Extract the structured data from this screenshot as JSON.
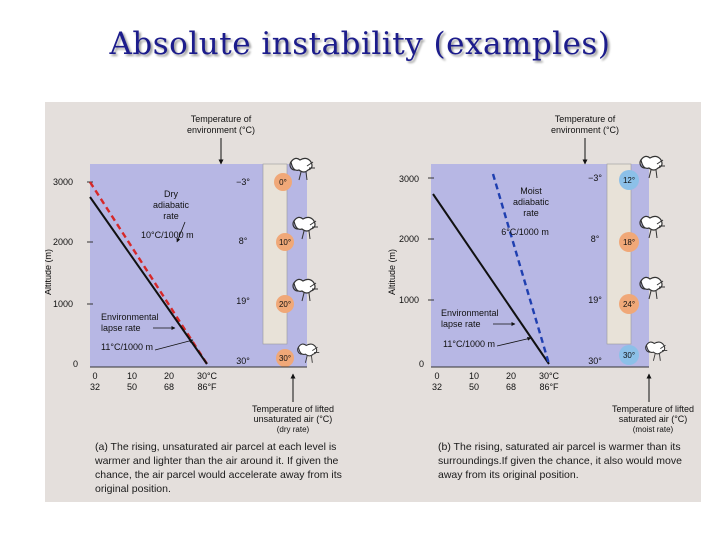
{
  "slide": {
    "title": "Absolute instability (examples)"
  },
  "panel_a": {
    "env_header": [
      "Temperature of",
      "environment (°C)"
    ],
    "ytick_3000": "3000",
    "ytick_2000": "2000",
    "ytick_1000": "1000",
    "ytick_0": "0",
    "ylabel": "Altitude (m)",
    "env_temps": [
      "−3°",
      "8°",
      "19°",
      "30°"
    ],
    "parcel_temps": [
      "0°",
      "10°",
      "20°",
      "30°"
    ],
    "rate_label": [
      "Dry",
      "adiabatic",
      "rate"
    ],
    "rate_value": "10°C/1000 m",
    "lapse_label": [
      "Environmental",
      "lapse rate"
    ],
    "lapse_value": "11°C/1000 m",
    "xticks_c": [
      "0",
      "10",
      "20",
      "30°C"
    ],
    "xticks_f": [
      "32",
      "50",
      "68",
      "86°F"
    ],
    "parcel_header": [
      "Temperature of lifted",
      "unsaturated air (°C)",
      "(dry rate)"
    ],
    "caption": "(a) The rising, unsaturated air parcel at each level is warmer and lighter than the air around it. If given the chance, the air parcel would accelerate away from its original position."
  },
  "panel_b": {
    "env_header": [
      "Temperature of",
      "environment (°C)"
    ],
    "ytick_3000": "3000",
    "ytick_2000": "2000",
    "ytick_1000": "1000",
    "ytick_0": "0",
    "ylabel": "Altitude (m)",
    "env_temps": [
      "−3°",
      "8°",
      "19°",
      "30°"
    ],
    "parcel_temps": [
      "12°",
      "18°",
      "24°",
      "30°"
    ],
    "rate_label": [
      "Moist",
      "adiabatic",
      "rate"
    ],
    "rate_value": "6°C/1000 m",
    "lapse_label": [
      "Environmental",
      "lapse rate"
    ],
    "lapse_value": "11°C/1000 m",
    "xticks_c": [
      "0",
      "10",
      "20",
      "30°C"
    ],
    "xticks_f": [
      "32",
      "50",
      "68",
      "86°F"
    ],
    "parcel_header": [
      "Temperature of lifted",
      "saturated air (°C)",
      "(moist rate)"
    ],
    "caption": "(b) The rising, saturated air parcel is warmer than its surroundings.If given the chance, it also would move away from its original position."
  },
  "colors": {
    "plot_bg": "#b7b7e4",
    "dry_line": "#d62828",
    "moist_line": "#1f3fb0",
    "env_line": "#111111",
    "parcel_orange": "#f0a878",
    "parcel_blue": "#8cc0e8"
  },
  "icons": [
    "balloon-icon"
  ]
}
